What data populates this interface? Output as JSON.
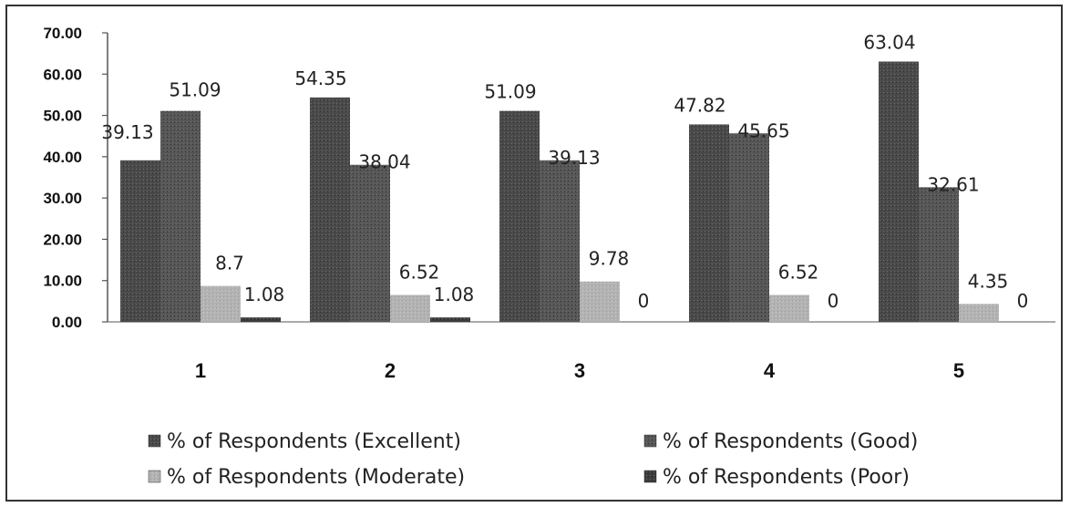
{
  "chart_data": {
    "type": "bar",
    "categories": [
      "1",
      "2",
      "3",
      "4",
      "5"
    ],
    "series": [
      {
        "name": "% of Respondents (Excellent)",
        "values": [
          39.13,
          54.35,
          51.09,
          47.82,
          63.04
        ],
        "labels": [
          "39.13",
          "54.35",
          "51.09",
          "47.82",
          "63.04"
        ],
        "color": "#4a4a4a"
      },
      {
        "name": "% of Respondents (Good)",
        "values": [
          51.09,
          38.04,
          39.13,
          45.65,
          32.61
        ],
        "labels": [
          "51.09",
          "38.04",
          "39.13",
          "45.65",
          "32.61"
        ],
        "color": "#575757"
      },
      {
        "name": "% of Respondents (Moderate)",
        "values": [
          8.7,
          6.52,
          9.78,
          6.52,
          4.35
        ],
        "labels": [
          "8.7",
          "6.52",
          "9.78",
          "6.52",
          "4.35"
        ],
        "color": "#b3b3b3"
      },
      {
        "name": "% of Respondents (Poor)",
        "values": [
          1.08,
          1.08,
          0,
          0,
          0
        ],
        "labels": [
          "1.08",
          "1.08",
          "0",
          "0",
          "0"
        ],
        "color": "#3c3c3c"
      }
    ],
    "yticks": [
      "0.00",
      "10.00",
      "20.00",
      "30.00",
      "40.00",
      "50.00",
      "60.00",
      "70.00"
    ],
    "ylim": [
      0,
      70
    ],
    "title": "",
    "xlabel": "",
    "ylabel": "",
    "legend_position": "bottom",
    "grid": false
  }
}
